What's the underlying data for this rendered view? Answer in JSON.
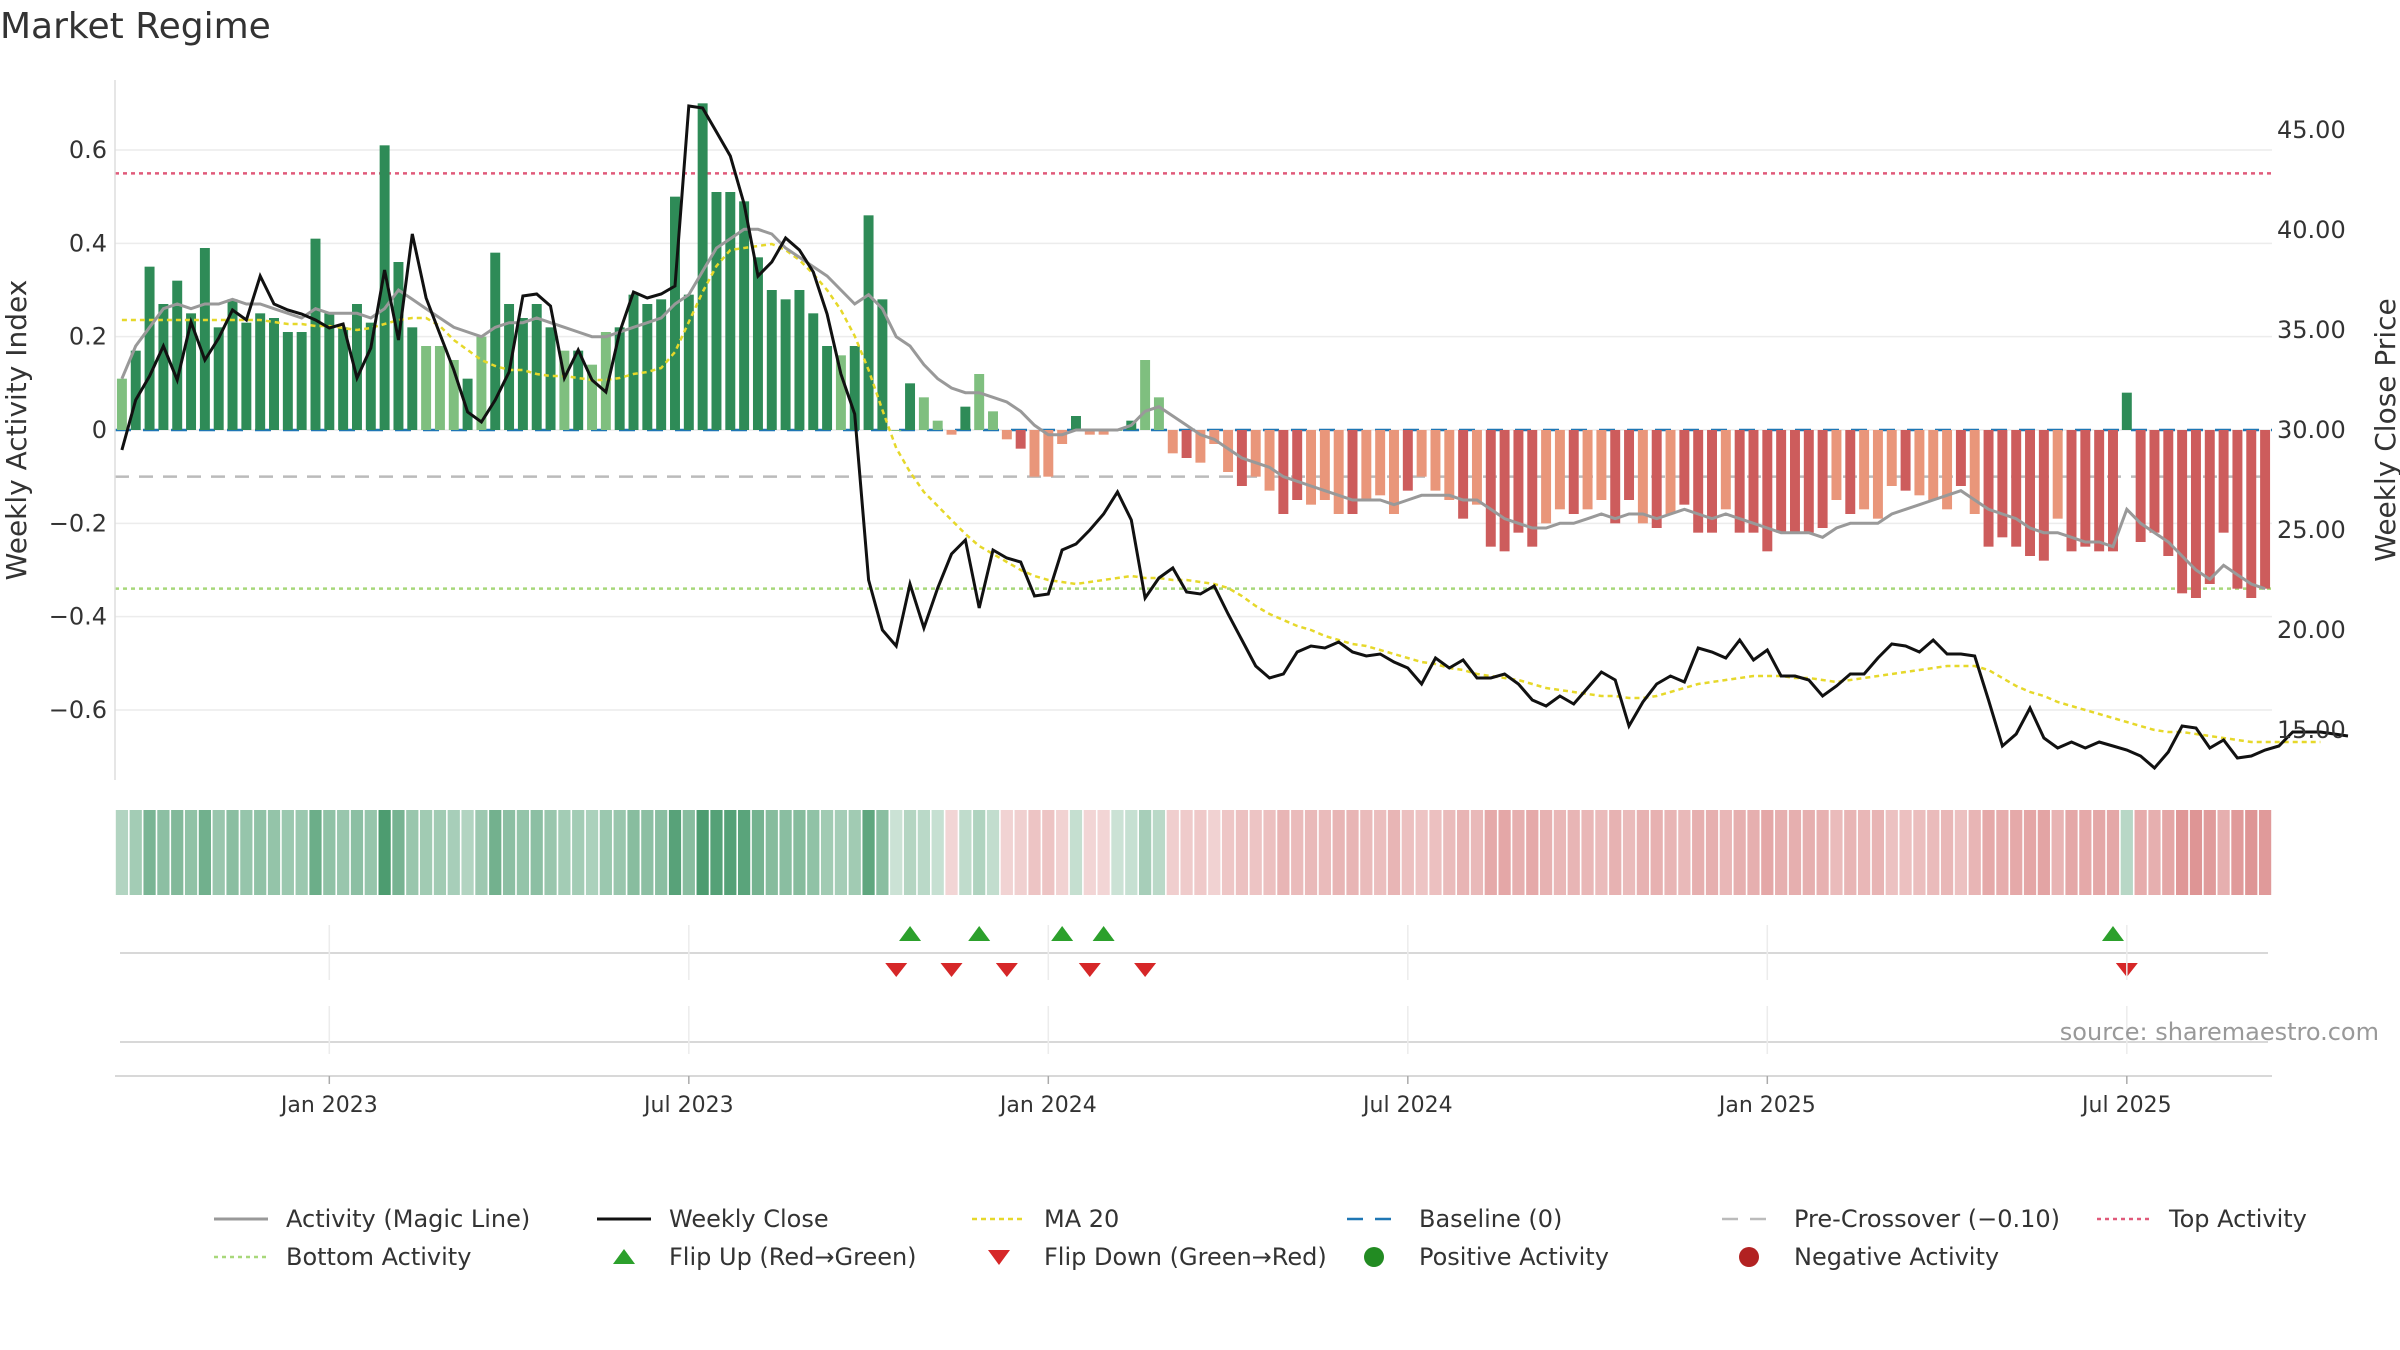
{
  "title": "Market Regime",
  "source": "source: sharemaestro.com",
  "colors": {
    "pos_strong": "#2e8b57",
    "pos_light": "#7fbf7f",
    "neg_strong": "#cd5c5c",
    "neg_light": "#e9967a",
    "close": "#111111",
    "magic": "#999999",
    "ma": "#e6d82a",
    "baseline": "#1f77b4",
    "pre": "#bbbbbb",
    "top": "#e05a7a",
    "bottom": "#a8d87a",
    "flip_up": "#2ca02c",
    "flip_down": "#d62728",
    "pos_dot": "#228b22",
    "neg_dot": "#b22222"
  },
  "chart_data": {
    "type": "bar",
    "title": "Market Regime",
    "ylabel_left": "Weekly Activity Index",
    "ylabel_right": "Weekly Close Price",
    "ylim_left": [
      -0.75,
      0.75
    ],
    "ylim_right": [
      12.5,
      47.5
    ],
    "left_ticks": [
      {
        "v": 0.6,
        "label": "0.6"
      },
      {
        "v": 0.4,
        "label": "0.4"
      },
      {
        "v": 0.2,
        "label": "0.2"
      },
      {
        "v": 0,
        "label": "0"
      },
      {
        "v": -0.2,
        "label": "−0.2"
      },
      {
        "v": -0.4,
        "label": "−0.4"
      },
      {
        "v": -0.6,
        "label": "−0.6"
      }
    ],
    "right_ticks": [
      {
        "v": 45,
        "label": "45.00"
      },
      {
        "v": 40,
        "label": "40.00"
      },
      {
        "v": 35,
        "label": "35.00"
      },
      {
        "v": 30,
        "label": "30.00"
      },
      {
        "v": 25,
        "label": "25.00"
      },
      {
        "v": 20,
        "label": "20.00"
      },
      {
        "v": 15,
        "label": "15.00"
      }
    ],
    "x_ticks": [
      {
        "i": 15,
        "label": "Jan 2023"
      },
      {
        "i": 41,
        "label": "Jul 2023"
      },
      {
        "i": 67,
        "label": "Jan 2024"
      },
      {
        "i": 93,
        "label": "Jul 2024"
      },
      {
        "i": 119,
        "label": "Jan 2025"
      },
      {
        "i": 145,
        "label": "Jul 2025"
      }
    ],
    "reference_lines": {
      "top_activity": 0.55,
      "bottom_activity": -0.34,
      "pre_crossover": -0.1,
      "baseline": 0
    },
    "activity": [
      0.11,
      0.17,
      0.35,
      0.27,
      0.32,
      0.25,
      0.39,
      0.22,
      0.28,
      0.23,
      0.25,
      0.24,
      0.21,
      0.21,
      0.41,
      0.25,
      0.22,
      0.27,
      0.23,
      0.61,
      0.36,
      0.22,
      0.18,
      0.18,
      0.15,
      0.11,
      0.2,
      0.38,
      0.27,
      0.24,
      0.27,
      0.22,
      0.17,
      0.17,
      0.14,
      0.21,
      0.22,
      0.29,
      0.27,
      0.28,
      0.5,
      0.29,
      0.7,
      0.51,
      0.51,
      0.49,
      0.37,
      0.3,
      0.28,
      0.3,
      0.25,
      0.18,
      0.16,
      0.18,
      0.46,
      0.28,
      0.0,
      0.1,
      0.07,
      0.02,
      -0.01,
      0.05,
      0.12,
      0.04,
      -0.02,
      -0.04,
      -0.1,
      -0.1,
      -0.03,
      0.03,
      -0.01,
      -0.01,
      0.0,
      0.02,
      0.15,
      0.07,
      -0.05,
      -0.06,
      -0.07,
      -0.03,
      -0.09,
      -0.12,
      -0.1,
      -0.13,
      -0.18,
      -0.15,
      -0.16,
      -0.15,
      -0.18,
      -0.18,
      -0.15,
      -0.14,
      -0.18,
      -0.13,
      -0.1,
      -0.13,
      -0.15,
      -0.19,
      -0.16,
      -0.25,
      -0.26,
      -0.22,
      -0.25,
      -0.2,
      -0.17,
      -0.18,
      -0.17,
      -0.15,
      -0.2,
      -0.15,
      -0.2,
      -0.21,
      -0.18,
      -0.16,
      -0.22,
      -0.22,
      -0.17,
      -0.22,
      -0.22,
      -0.26,
      -0.22,
      -0.22,
      -0.22,
      -0.21,
      -0.15,
      -0.18,
      -0.17,
      -0.19,
      -0.12,
      -0.13,
      -0.14,
      -0.15,
      -0.17,
      -0.12,
      -0.18,
      -0.25,
      -0.23,
      -0.25,
      -0.27,
      -0.28,
      -0.19,
      -0.26,
      -0.25,
      -0.26,
      -0.26,
      0.08,
      -0.24,
      -0.22,
      -0.27,
      -0.35,
      -0.36,
      -0.33,
      -0.22,
      -0.34,
      -0.36,
      -0.34
    ],
    "close": [
      29.0,
      31.5,
      32.7,
      34.2,
      32.5,
      35.4,
      33.5,
      34.6,
      36.0,
      35.5,
      37.7,
      36.3,
      36.0,
      35.8,
      35.5,
      35.1,
      35.3,
      32.6,
      34.1,
      38.0,
      34.5,
      39.8,
      36.6,
      34.8,
      33.0,
      30.9,
      30.4,
      31.5,
      32.9,
      36.7,
      36.8,
      36.2,
      32.6,
      34.0,
      32.5,
      31.9,
      34.9,
      36.9,
      36.6,
      36.8,
      37.2,
      46.2,
      46.1,
      44.9,
      43.7,
      41.3,
      37.7,
      38.4,
      39.6,
      39.0,
      37.9,
      35.8,
      32.8,
      30.8,
      22.5,
      20.0,
      19.2,
      22.3,
      20.1,
      22.1,
      23.8,
      24.5,
      21.1,
      24.0,
      23.6,
      23.4,
      21.7,
      21.8,
      24.0,
      24.3,
      25.0,
      25.8,
      26.9,
      25.5,
      21.6,
      22.6,
      23.1,
      21.9,
      21.8,
      22.2,
      20.8,
      19.5,
      18.2,
      17.6,
      17.8,
      18.9,
      19.2,
      19.1,
      19.4,
      18.9,
      18.7,
      18.8,
      18.4,
      18.1,
      17.3,
      18.6,
      18.1,
      18.5,
      17.6,
      17.6,
      17.8,
      17.3,
      16.5,
      16.2,
      16.7,
      16.3,
      17.1,
      17.9,
      17.5,
      15.2,
      16.4,
      17.3,
      17.7,
      17.4,
      19.1,
      18.9,
      18.6,
      19.5,
      18.5,
      19.0,
      17.7,
      17.7,
      17.5,
      16.7,
      17.2,
      17.8,
      17.8,
      18.6,
      19.3,
      19.2,
      18.9,
      19.5,
      18.8,
      18.8,
      18.7,
      16.5,
      14.2,
      14.8,
      16.1,
      14.6,
      14.1,
      14.4,
      14.1,
      14.4,
      14.2,
      14.0,
      13.7,
      13.1,
      13.9,
      15.2,
      15.1,
      14.1,
      14.5,
      13.6,
      13.7,
      14.0,
      14.2,
      14.9,
      14.9,
      14.9,
      14.8,
      14.7
    ],
    "magic": [
      0.11,
      0.18,
      0.22,
      0.26,
      0.27,
      0.26,
      0.27,
      0.27,
      0.28,
      0.27,
      0.27,
      0.26,
      0.25,
      0.24,
      0.26,
      0.25,
      0.25,
      0.25,
      0.24,
      0.26,
      0.3,
      0.28,
      0.26,
      0.24,
      0.22,
      0.21,
      0.2,
      0.22,
      0.23,
      0.23,
      0.24,
      0.23,
      0.22,
      0.21,
      0.2,
      0.2,
      0.21,
      0.22,
      0.23,
      0.24,
      0.27,
      0.29,
      0.34,
      0.39,
      0.41,
      0.43,
      0.43,
      0.42,
      0.39,
      0.37,
      0.35,
      0.33,
      0.3,
      0.27,
      0.29,
      0.26,
      0.2,
      0.18,
      0.14,
      0.11,
      0.09,
      0.08,
      0.08,
      0.07,
      0.06,
      0.04,
      0.01,
      -0.01,
      -0.01,
      0.0,
      0.0,
      0.0,
      0.0,
      0.01,
      0.04,
      0.05,
      0.03,
      0.01,
      -0.01,
      -0.02,
      -0.04,
      -0.06,
      -0.07,
      -0.08,
      -0.1,
      -0.11,
      -0.12,
      -0.13,
      -0.14,
      -0.15,
      -0.15,
      -0.15,
      -0.16,
      -0.15,
      -0.14,
      -0.14,
      -0.14,
      -0.15,
      -0.15,
      -0.17,
      -0.19,
      -0.2,
      -0.21,
      -0.21,
      -0.2,
      -0.2,
      -0.19,
      -0.18,
      -0.19,
      -0.18,
      -0.18,
      -0.19,
      -0.18,
      -0.17,
      -0.18,
      -0.19,
      -0.18,
      -0.19,
      -0.2,
      -0.21,
      -0.22,
      -0.22,
      -0.22,
      -0.23,
      -0.21,
      -0.2,
      -0.2,
      -0.2,
      -0.18,
      -0.17,
      -0.16,
      -0.15,
      -0.14,
      -0.13,
      -0.15,
      -0.17,
      -0.18,
      -0.19,
      -0.21,
      -0.22,
      -0.22,
      -0.23,
      -0.24,
      -0.24,
      -0.25,
      -0.17,
      -0.2,
      -0.22,
      -0.24,
      -0.27,
      -0.3,
      -0.32,
      -0.29,
      -0.31,
      -0.33,
      -0.34
    ],
    "ma20": [
      35.5,
      35.5,
      35.5,
      35.5,
      35.5,
      35.5,
      35.5,
      35.5,
      35.5,
      35.5,
      35.5,
      35.4,
      35.3,
      35.3,
      35.2,
      35.2,
      35.1,
      35.0,
      35.1,
      35.3,
      35.5,
      35.6,
      35.6,
      35.2,
      34.5,
      34.0,
      33.5,
      33.2,
      33.0,
      33.0,
      32.8,
      32.7,
      32.7,
      32.6,
      32.5,
      32.5,
      32.6,
      32.8,
      32.9,
      33.1,
      33.9,
      35.4,
      36.9,
      38.2,
      39.0,
      39.1,
      39.2,
      39.3,
      39.0,
      38.5,
      37.8,
      37.0,
      36.0,
      34.7,
      33.0,
      31.0,
      29.1,
      27.9,
      26.9,
      26.2,
      25.5,
      24.8,
      24.2,
      23.8,
      23.4,
      23.0,
      22.7,
      22.5,
      22.4,
      22.3,
      22.4,
      22.5,
      22.6,
      22.7,
      22.6,
      22.6,
      22.5,
      22.5,
      22.4,
      22.3,
      22.1,
      21.7,
      21.2,
      20.8,
      20.5,
      20.2,
      20.0,
      19.7,
      19.5,
      19.3,
      19.2,
      19.0,
      18.8,
      18.6,
      18.4,
      18.3,
      18.1,
      18.0,
      17.8,
      17.7,
      17.6,
      17.5,
      17.3,
      17.1,
      17.0,
      16.9,
      16.8,
      16.7,
      16.7,
      16.6,
      16.6,
      16.7,
      16.9,
      17.1,
      17.3,
      17.4,
      17.5,
      17.6,
      17.7,
      17.7,
      17.7,
      17.6,
      17.6,
      17.5,
      17.4,
      17.5,
      17.6,
      17.7,
      17.8,
      17.9,
      18.0,
      18.1,
      18.2,
      18.2,
      18.2,
      18.0,
      17.6,
      17.2,
      16.9,
      16.7,
      16.4,
      16.2,
      16.0,
      15.8,
      15.6,
      15.4,
      15.2,
      15.0,
      14.9,
      14.9,
      14.8,
      14.7,
      14.6,
      14.5,
      14.4,
      14.4,
      14.4,
      14.4,
      14.4,
      14.4
    ],
    "flip_up": [
      57,
      62,
      68,
      71,
      144
    ],
    "flip_down": [
      56,
      60,
      64,
      70,
      74,
      145
    ]
  },
  "legend": [
    {
      "label": "Activity (Magic Line)",
      "key": "magic"
    },
    {
      "label": "Weekly Close",
      "key": "close"
    },
    {
      "label": "MA 20",
      "key": "ma"
    },
    {
      "label": "Baseline (0)",
      "key": "baseline"
    },
    {
      "label": "Pre-Crossover (−0.10)",
      "key": "pre"
    },
    {
      "label": "Top Activity",
      "key": "top"
    },
    {
      "label": "Bottom Activity",
      "key": "bottom"
    },
    {
      "label": "Flip Up (Red→Green)",
      "key": "flip_up"
    },
    {
      "label": "Flip Down (Green→Red)",
      "key": "flip_down"
    },
    {
      "label": "Positive Activity",
      "key": "pos_dot"
    },
    {
      "label": "Negative Activity",
      "key": "neg_dot"
    }
  ]
}
